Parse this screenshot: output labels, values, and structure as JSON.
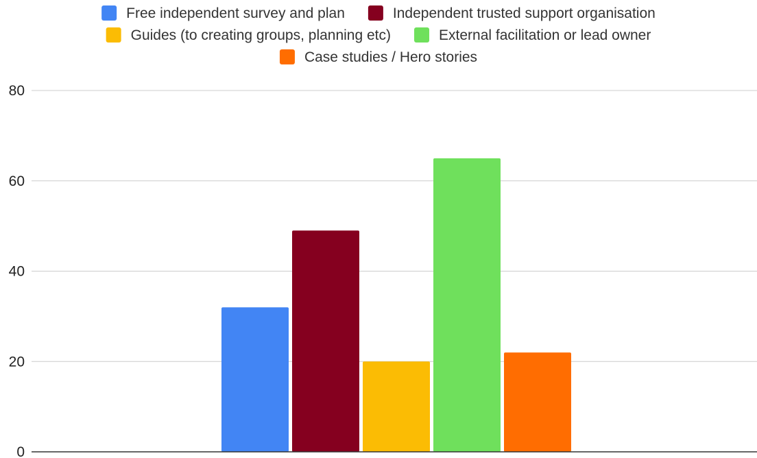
{
  "chart_data": {
    "type": "bar",
    "categories": [
      ""
    ],
    "series": [
      {
        "name": "Free independent survey and plan",
        "values": [
          32
        ],
        "color": "#4285f4"
      },
      {
        "name": "Independent trusted support organisation",
        "values": [
          49
        ],
        "color": "#85001f"
      },
      {
        "name": "Guides (to creating groups, planning etc)",
        "values": [
          20
        ],
        "color": "#fbbc04"
      },
      {
        "name": "External facilitation or lead owner",
        "values": [
          65
        ],
        "color": "#6fe05c"
      },
      {
        "name": "Case studies / Hero stories",
        "values": [
          22
        ],
        "color": "#ff6d01"
      }
    ],
    "title": "",
    "xlabel": "",
    "ylabel": "",
    "ylim": [
      0,
      80
    ],
    "yticks": [
      "0",
      "20",
      "40",
      "60",
      "80"
    ],
    "grid": true,
    "legend_position": "top-center"
  }
}
